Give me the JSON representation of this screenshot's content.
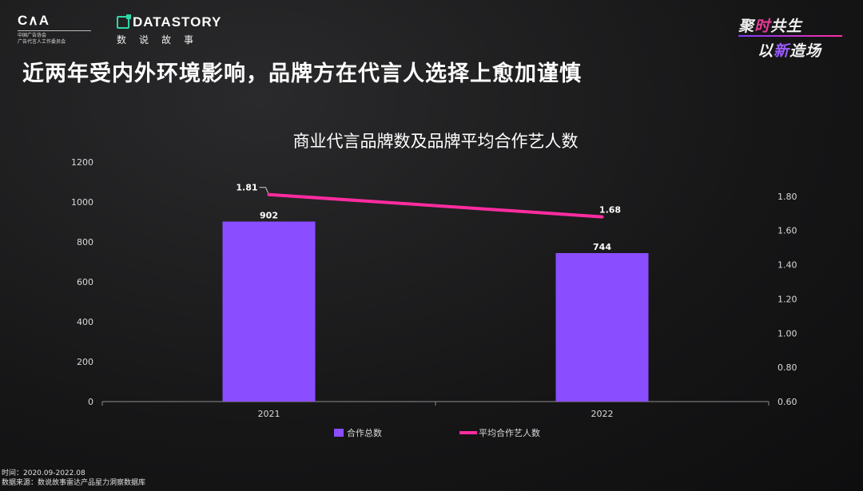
{
  "logos": {
    "caa_mark": "C∧A",
    "caa_sub_line1": "中国广告协会",
    "caa_sub_line2": "广告代言人工作委员会",
    "datastory_name": "DATASTORY",
    "datastory_cn": "数说故事",
    "event_line1_a": "聚",
    "event_line1_b": "时",
    "event_line1_c": "共生",
    "event_line2_a": "以",
    "event_line2_b": "新",
    "event_line2_c": "造场"
  },
  "headline": "近两年受内外环境影响，品牌方在代言人选择上愈加谨慎",
  "footer": {
    "time": "时间：2020.09-2022.08",
    "source": "数据来源：数说故事雷达产品星力洞察数据库"
  },
  "colors": {
    "bar": "#8a4dff",
    "line": "#ff2ca0",
    "axis_text": "#d9d9d9",
    "label_text": "#ffffff"
  },
  "chart_data": {
    "type": "bar",
    "title": "商业代言品牌数及品牌平均合作艺人数",
    "categories": [
      "2021",
      "2022"
    ],
    "series": [
      {
        "name": "合作总数",
        "type": "bar",
        "axis": "left",
        "values": [
          902,
          744
        ],
        "labels": [
          "902",
          "744"
        ]
      },
      {
        "name": "平均合作艺人数",
        "type": "line",
        "axis": "right",
        "values": [
          1.81,
          1.68
        ],
        "labels": [
          "1.81",
          "1.68"
        ]
      }
    ],
    "y_left": {
      "min": 0,
      "max": 1200,
      "ticks": [
        "0",
        "200",
        "400",
        "600",
        "800",
        "1000",
        "1200"
      ]
    },
    "y_right": {
      "min": 0.6,
      "max": 2.0,
      "ticks": [
        "0.60",
        "0.80",
        "1.00",
        "1.20",
        "1.40",
        "1.60",
        "1.80"
      ]
    },
    "grid": false,
    "legend_position": "bottom"
  }
}
